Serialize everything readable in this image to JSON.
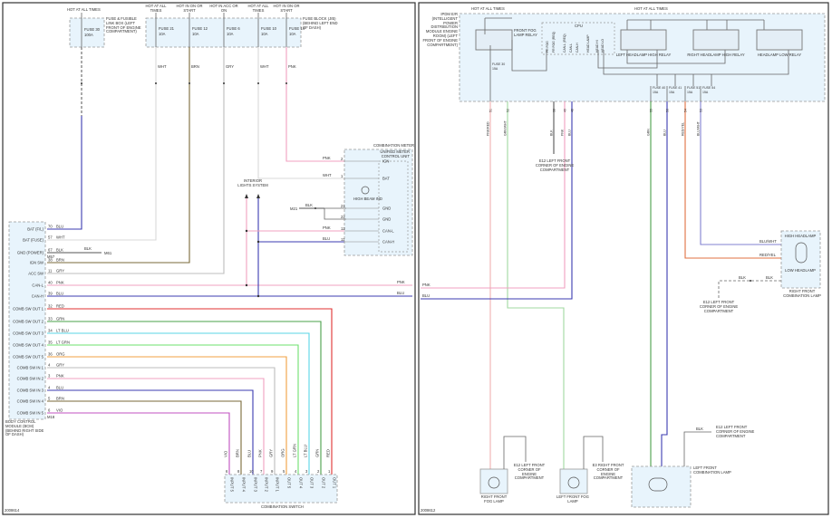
{
  "colors": {
    "BLU": "#3b3bb0",
    "WHT": "#d8d8d8",
    "BLK": "#555555",
    "BRN": "#7a6a3a",
    "GRY": "#bdbdbd",
    "PNK": "#f0a0c0",
    "RED": "#e03030",
    "GRN": "#4aa04a",
    "LT_BLU": "#5ad6e6",
    "LT_GRN": "#6ee06e",
    "ORG": "#f0a040",
    "VIO": "#c050c0",
    "RED_YEL": "#e07040",
    "BLU_WHT": "#8080d0",
    "GRN_WHT": "#a0d8a0",
    "PNK_RED": "#f0b0b0",
    "fill": "#e8f4fc"
  },
  "left": {
    "fuse1": {
      "hot": "HOT AT ALL TIMES",
      "fuse": "FUSE 30",
      "rating": "100A",
      "location": "FUSE & FUSIBLE LINK BOX (LEFT FRONT OF ENGINE COMPARTMENT)"
    },
    "fuses": [
      {
        "hot": "HOT AT ALL TIMES",
        "fuse": "FUSE 21",
        "rating": "10A",
        "wire": "WHT",
        "pin": "8"
      },
      {
        "hot": "HOT IN ON OR START",
        "fuse": "FUSE 12",
        "rating": "10A",
        "wire": "BRN",
        "pin": "7"
      },
      {
        "hot": "HOT IN ACC OR ON",
        "fuse": "FUSE 6",
        "rating": "10A",
        "wire": "GRY",
        "pin": "1"
      },
      {
        "hot": "HOT AT ALL TIMES",
        "fuse": "FUSE 10",
        "rating": "10A",
        "wire": "WHT",
        "pin": "3"
      },
      {
        "hot": "HOT IN ON OR START",
        "fuse": "FUSE 14",
        "rating": "10A",
        "wire": "PNK",
        "pin": "5"
      }
    ],
    "fuse_block_label": "FUSE BLOCK (J/B) (BEHIND LEFT END OF DASH)",
    "bcm": {
      "label": "BODY CONTROL MODULE (BCM) (BEHIND RIGHT SIDE OF DASH)",
      "connector": "M18",
      "pins": [
        {
          "name": "BAT (F/L)",
          "pin": "70",
          "wire": "BLU"
        },
        {
          "name": "BAT (FUSE)",
          "pin": "57",
          "wire": "WHT"
        },
        {
          "name": "GND (POWER)",
          "pin": "67",
          "wire": "BLK"
        },
        {
          "name": "IGN SW",
          "pin": "38",
          "wire": "BRN"
        },
        {
          "name": "ACC SW",
          "pin": "11",
          "wire": "GRY"
        },
        {
          "name": "CAN-L",
          "pin": "40",
          "wire": "PNK"
        },
        {
          "name": "CAN-H",
          "pin": "39",
          "wire": "BLU"
        },
        {
          "name": "COMB SW OUT 1",
          "pin": "32",
          "wire": "RED"
        },
        {
          "name": "COMB SW OUT 2",
          "pin": "33",
          "wire": "GRN"
        },
        {
          "name": "COMB SW OUT 3",
          "pin": "34",
          "wire": "LT BLU"
        },
        {
          "name": "COMB SW OUT 4",
          "pin": "35",
          "wire": "LT GRN"
        },
        {
          "name": "COMB SW OUT 5",
          "pin": "36",
          "wire": "ORG"
        },
        {
          "name": "COMB SW IN 1",
          "pin": "4",
          "wire": "GRY"
        },
        {
          "name": "COMB SW IN 2",
          "pin": "3",
          "wire": "PNK"
        },
        {
          "name": "COMB SW IN 3",
          "pin": "4",
          "wire": "BLU"
        },
        {
          "name": "COMB SW IN 4",
          "pin": "5",
          "wire": "BRN"
        },
        {
          "name": "COMB SW IN 5",
          "pin": "6",
          "wire": "VIO"
        }
      ]
    },
    "ground": {
      "wire": "BLK",
      "label": "M57",
      "ref": "M61"
    },
    "meter": {
      "title": "COMBINATION METER",
      "unit": "UNIFIED METER CONTROL UNIT",
      "lamp": "HIGH BEAM IND",
      "pins": [
        {
          "name": "IGN",
          "pin": "2",
          "wire": "PNK"
        },
        {
          "name": "BAT",
          "pin": "1",
          "wire": "WHT"
        },
        {
          "name": "GND",
          "pin": "21",
          "wire": "BLK"
        },
        {
          "name": "GND",
          "pin": "22",
          "wire": "BLK"
        },
        {
          "name": "CAN-L",
          "pin": "12",
          "wire": "PNK"
        },
        {
          "name": "CAN-H",
          "pin": "11",
          "wire": "BLU"
        }
      ],
      "ground": "M21"
    },
    "interior_lights": "INTERIOR LIGHTS SYSTEM",
    "edge_labels": [
      "PNK",
      "BLU"
    ],
    "switch": {
      "title": "COMBINATION SWITCH",
      "pins": [
        {
          "name": "INPUT 5",
          "wire": "VIO",
          "pin": "6"
        },
        {
          "name": "INPUT 4",
          "wire": "BRN",
          "pin": "8"
        },
        {
          "name": "INPUT 3",
          "wire": "BLU",
          "pin": "10"
        },
        {
          "name": "INPUT 2",
          "wire": "PNK",
          "pin": "7"
        },
        {
          "name": "INPUT 1",
          "wire": "GRY",
          "pin": "9"
        },
        {
          "name": "OUT 5",
          "wire": "ORG",
          "pin": "5"
        },
        {
          "name": "OUT 4",
          "wire": "LT GRN",
          "pin": "4"
        },
        {
          "name": "OUT 3",
          "wire": "LT BLU",
          "pin": "3"
        },
        {
          "name": "OUT 2",
          "wire": "GRN",
          "pin": "2"
        },
        {
          "name": "OUT 1",
          "wire": "RED",
          "pin": "1"
        }
      ]
    },
    "page_id": "2008614"
  },
  "right": {
    "ipdm": "IPDM E/R (INTELLIGENT POWER DISTRIBUTION MODULE ENGINE ROOM) (LEFT FRONT OF ENGINE COMPARTMENT)",
    "hot1": "HOT AT ALL TIMES",
    "hot2": "HOT AT ALL TIMES",
    "fog_relay": "FRONT FOG LAMP RELAY",
    "cpu": "CPU",
    "cpu_pins": [
      "FR FOG",
      "FR FOG (REQ)",
      "CAN-L (REQ)",
      "CAN-L",
      "CAN-H",
      "HEAD LAMP",
      "HEAD HI",
      "HEAD LO"
    ],
    "relays": [
      "LEFT HEADLAMP HIGH RELAY",
      "RIGHT HEADLAMP HIGH RELAY",
      "HEADLAMP LOW RELAY"
    ],
    "fuses": [
      {
        "fuse": "FUSE 30",
        "rating": "15A"
      },
      {
        "fuse": "FUSE 40",
        "rating": "15A"
      },
      {
        "fuse": "FUSE 41",
        "rating": "15A"
      },
      {
        "fuse": "FUSE 51",
        "rating": "15A"
      },
      {
        "fuse": "FUSE 54",
        "rating": "15A"
      }
    ],
    "outputs": [
      {
        "wire": "PNK/RED",
        "pin": "51"
      },
      {
        "wire": "GRN/WHT",
        "pin": "52"
      },
      {
        "wire": "BLK",
        "pin": "38"
      },
      {
        "wire": "PNK",
        "pin": "49"
      },
      {
        "wire": "BLU",
        "pin": "48"
      },
      {
        "wire": "GRN",
        "pin": "55"
      },
      {
        "wire": "BLU",
        "pin": "56"
      },
      {
        "wire": "RED/YEL",
        "pin": "54"
      },
      {
        "wire": "BLU/WHT",
        "pin": "53"
      }
    ],
    "cpu_ground": "E12 LEFT FRONT CORNER OF ENGINE COMPARTMENT",
    "edge_labels": [
      "PNK",
      "BLU"
    ],
    "rf_combo": {
      "title": "RIGHT FRONT COMBINATION LAMP",
      "high": "HIGH HEADLAMP",
      "low": "LOW HEADLAMP",
      "wires": [
        "BLU/WHT",
        "RED/YEL",
        "BLK"
      ],
      "ground_wire": "BLK",
      "ground": "E12 LEFT FRONT CORNER OF ENGINE COMPARTMENT"
    },
    "rf_fog": {
      "title": "RIGHT FRONT FOG LAMP",
      "wires": [
        "PNK/RED",
        "BLK"
      ],
      "ground": "E12 LEFT FRONT CORNER OF ENGINE COMPARTMENT"
    },
    "lf_fog": {
      "title": "LEFT FRONT FOG LAMP",
      "wires": [
        "GRN/WHT",
        "BLK"
      ],
      "ground": "E3 RIGHT FRONT CORNER OF ENGINE COMPARTMENT"
    },
    "lf_combo": {
      "title": "LEFT FRONT COMBINATION LAMP",
      "high": "HIGH HEADLAMP",
      "low": "LOW HEADLAMP",
      "wires": [
        "GRN",
        "BLU",
        "BLK"
      ],
      "ground_wire": "BLK",
      "ground": "E12 LEFT FRONT CORNER OF ENGINE COMPARTMENT"
    },
    "page_id": "2008612"
  }
}
